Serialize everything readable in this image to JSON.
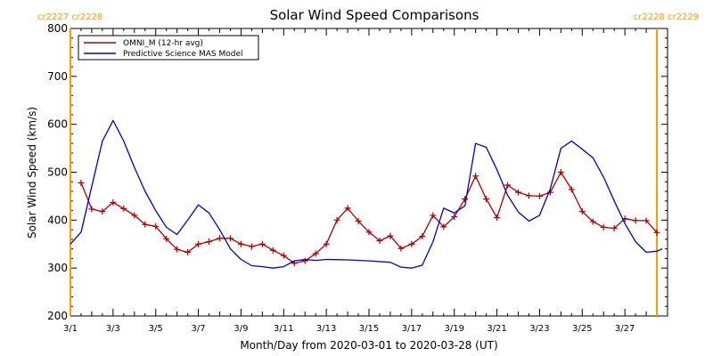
{
  "chart_data": {
    "type": "line",
    "title": "Solar Wind Speed Comparisons",
    "xlabel": "Month/Day from 2020-03-01 to 2020-03-28 (UT)",
    "ylabel": "Solar Wind Speed (km/s)",
    "ylim": [
      200,
      800
    ],
    "yticks": [
      "200",
      "300",
      "400",
      "500",
      "600",
      "700",
      "800"
    ],
    "xlim": [
      "2020-03-01T00:00",
      "2020-03-29T00:00"
    ],
    "xticks": [
      {
        "date": "2020-03-01",
        "label": "3/1"
      },
      {
        "date": "2020-03-03",
        "label": "3/3"
      },
      {
        "date": "2020-03-05",
        "label": "3/5"
      },
      {
        "date": "2020-03-07",
        "label": "3/7"
      },
      {
        "date": "2020-03-09",
        "label": "3/9"
      },
      {
        "date": "2020-03-11",
        "label": "3/11"
      },
      {
        "date": "2020-03-13",
        "label": "3/13"
      },
      {
        "date": "2020-03-15",
        "label": "3/15"
      },
      {
        "date": "2020-03-17",
        "label": "3/17"
      },
      {
        "date": "2020-03-19",
        "label": "3/19"
      },
      {
        "date": "2020-03-21",
        "label": "3/21"
      },
      {
        "date": "2020-03-23",
        "label": "3/23"
      },
      {
        "date": "2020-03-25",
        "label": "3/25"
      },
      {
        "date": "2020-03-27",
        "label": "3/27"
      }
    ],
    "legend_position": "top-left",
    "carrington_markers": [
      {
        "date": "2020-03-01T00:00",
        "label": "cr2227 cr2228",
        "side": "left",
        "color": "#ff9900"
      },
      {
        "date": "2020-03-28T12:00",
        "label": "cr2228 cr2229",
        "side": "right",
        "color": "#ff9900"
      }
    ],
    "series": [
      {
        "name": "OMNI_M (12-hr avg)",
        "color": "#aa0000",
        "marker": "plus",
        "points": [
          [
            "2020-03-01T12:00",
            478
          ],
          [
            "2020-03-02T00:00",
            423
          ],
          [
            "2020-03-02T12:00",
            418
          ],
          [
            "2020-03-03T00:00",
            437
          ],
          [
            "2020-03-03T12:00",
            424
          ],
          [
            "2020-03-04T00:00",
            410
          ],
          [
            "2020-03-04T12:00",
            391
          ],
          [
            "2020-03-05T00:00",
            387
          ],
          [
            "2020-03-05T12:00",
            361
          ],
          [
            "2020-03-06T00:00",
            339
          ],
          [
            "2020-03-06T12:00",
            333
          ],
          [
            "2020-03-07T00:00",
            350
          ],
          [
            "2020-03-07T12:00",
            355
          ],
          [
            "2020-03-08T00:00",
            362
          ],
          [
            "2020-03-08T12:00",
            362
          ],
          [
            "2020-03-09T00:00",
            350
          ],
          [
            "2020-03-09T12:00",
            345
          ],
          [
            "2020-03-10T00:00",
            350
          ],
          [
            "2020-03-10T12:00",
            337
          ],
          [
            "2020-03-11T00:00",
            326
          ],
          [
            "2020-03-11T12:00",
            310
          ],
          [
            "2020-03-12T00:00",
            315
          ],
          [
            "2020-03-12T12:00",
            330
          ],
          [
            "2020-03-13T00:00",
            350
          ],
          [
            "2020-03-13T12:00",
            400
          ],
          [
            "2020-03-14T00:00",
            425
          ],
          [
            "2020-03-14T12:00",
            398
          ],
          [
            "2020-03-15T00:00",
            375
          ],
          [
            "2020-03-15T12:00",
            357
          ],
          [
            "2020-03-16T00:00",
            367
          ],
          [
            "2020-03-16T12:00",
            341
          ],
          [
            "2020-03-17T00:00",
            350
          ],
          [
            "2020-03-17T12:00",
            366
          ],
          [
            "2020-03-18T00:00",
            410
          ],
          [
            "2020-03-18T12:00",
            386
          ],
          [
            "2020-03-19T00:00",
            407
          ],
          [
            "2020-03-19T12:00",
            444
          ],
          [
            "2020-03-20T00:00",
            492
          ],
          [
            "2020-03-20T12:00",
            444
          ],
          [
            "2020-03-21T00:00",
            405
          ],
          [
            "2020-03-21T12:00",
            473
          ],
          [
            "2020-03-22T00:00",
            458
          ],
          [
            "2020-03-22T12:00",
            451
          ],
          [
            "2020-03-23T00:00",
            450
          ],
          [
            "2020-03-23T12:00",
            458
          ],
          [
            "2020-03-24T00:00",
            500
          ],
          [
            "2020-03-24T12:00",
            464
          ],
          [
            "2020-03-25T00:00",
            418
          ],
          [
            "2020-03-25T12:00",
            397
          ],
          [
            "2020-03-26T00:00",
            385
          ],
          [
            "2020-03-26T12:00",
            383
          ],
          [
            "2020-03-27T00:00",
            403
          ],
          [
            "2020-03-27T12:00",
            399
          ],
          [
            "2020-03-28T00:00",
            399
          ],
          [
            "2020-03-28T12:00",
            374
          ]
        ]
      },
      {
        "name": "Predictive Science MAS Model",
        "color": "#0000cc",
        "marker": "none",
        "points": [
          [
            "2020-03-01T00:00",
            350
          ],
          [
            "2020-03-01T12:00",
            375
          ],
          [
            "2020-03-02T00:00",
            470
          ],
          [
            "2020-03-02T12:00",
            565
          ],
          [
            "2020-03-03T00:00",
            608
          ],
          [
            "2020-03-03T12:00",
            565
          ],
          [
            "2020-03-04T00:00",
            510
          ],
          [
            "2020-03-04T12:00",
            460
          ],
          [
            "2020-03-05T00:00",
            420
          ],
          [
            "2020-03-05T12:00",
            385
          ],
          [
            "2020-03-06T00:00",
            370
          ],
          [
            "2020-03-06T12:00",
            400
          ],
          [
            "2020-03-07T00:00",
            432
          ],
          [
            "2020-03-07T12:00",
            415
          ],
          [
            "2020-03-08T00:00",
            380
          ],
          [
            "2020-03-08T12:00",
            340
          ],
          [
            "2020-03-09T00:00",
            318
          ],
          [
            "2020-03-09T12:00",
            305
          ],
          [
            "2020-03-10T00:00",
            303
          ],
          [
            "2020-03-10T12:00",
            300
          ],
          [
            "2020-03-11T00:00",
            303
          ],
          [
            "2020-03-11T12:00",
            315
          ],
          [
            "2020-03-12T00:00",
            318
          ],
          [
            "2020-03-12T12:00",
            316
          ],
          [
            "2020-03-13T00:00",
            318
          ],
          [
            "2020-03-14T00:00",
            317
          ],
          [
            "2020-03-15T00:00",
            315
          ],
          [
            "2020-03-16T00:00",
            312
          ],
          [
            "2020-03-16T12:00",
            302
          ],
          [
            "2020-03-17T00:00",
            300
          ],
          [
            "2020-03-17T12:00",
            306
          ],
          [
            "2020-03-18T00:00",
            355
          ],
          [
            "2020-03-18T12:00",
            425
          ],
          [
            "2020-03-19T00:00",
            415
          ],
          [
            "2020-03-19T12:00",
            430
          ],
          [
            "2020-03-20T00:00",
            560
          ],
          [
            "2020-03-20T12:00",
            552
          ],
          [
            "2020-03-21T00:00",
            505
          ],
          [
            "2020-03-21T12:00",
            452
          ],
          [
            "2020-03-22T00:00",
            417
          ],
          [
            "2020-03-22T12:00",
            398
          ],
          [
            "2020-03-23T00:00",
            410
          ],
          [
            "2020-03-23T12:00",
            465
          ],
          [
            "2020-03-24T00:00",
            550
          ],
          [
            "2020-03-24T12:00",
            565
          ],
          [
            "2020-03-25T00:00",
            548
          ],
          [
            "2020-03-25T12:00",
            530
          ],
          [
            "2020-03-26T00:00",
            490
          ],
          [
            "2020-03-26T12:00",
            440
          ],
          [
            "2020-03-27T00:00",
            393
          ],
          [
            "2020-03-27T12:00",
            355
          ],
          [
            "2020-03-28T00:00",
            333
          ],
          [
            "2020-03-28T12:00",
            335
          ],
          [
            "2020-03-28T18:00",
            340
          ]
        ]
      }
    ]
  }
}
